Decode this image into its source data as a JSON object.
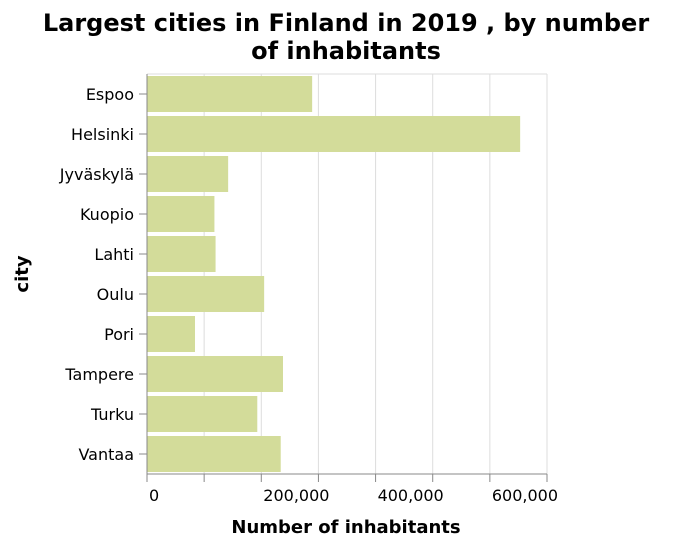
{
  "chart_data": {
    "type": "bar",
    "orientation": "horizontal",
    "title_lines": [
      "Largest cities in Finland in 2019 , by number",
      "of inhabitants"
    ],
    "xlabel": "Number of inhabitants",
    "ylabel": "city",
    "categories": [
      "Espoo",
      "Helsinki",
      "Jyväskylä",
      "Kuopio",
      "Lahti",
      "Oulu",
      "Pori",
      "Tampere",
      "Turku",
      "Vantaa"
    ],
    "values": [
      289000,
      653000,
      142000,
      118000,
      120000,
      205000,
      84000,
      238000,
      193000,
      234000
    ],
    "xlim": [
      0,
      700000
    ],
    "xticks": [
      0,
      200000,
      400000,
      600000
    ],
    "xtick_labels": [
      "0",
      "200,000",
      "400,000",
      "600,000"
    ],
    "grid": true,
    "bar_color": "#d3dc9a",
    "grid_color": "#dddddd",
    "axis_color": "#888888"
  }
}
